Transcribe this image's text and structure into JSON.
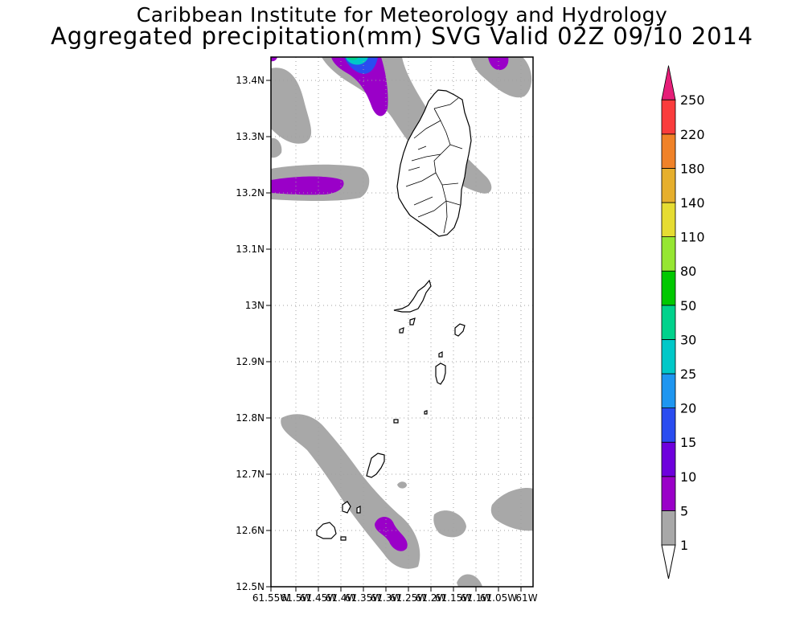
{
  "header": {
    "institute": "Caribbean Institute for Meteorology and Hydrology",
    "product": "Aggregated precipitation(mm) SVG Valid 02Z 09/10 2014"
  },
  "map": {
    "lat_labels": [
      "13.4N",
      "13.3N",
      "13.2N",
      "13.1N",
      "13N",
      "12.9N",
      "12.8N",
      "12.7N",
      "12.6N",
      "12.5N"
    ],
    "lon_labels": [
      "61.55W",
      "61.5W",
      "61.45W",
      "61.4W",
      "61.35W",
      "61.3W",
      "61.25W",
      "61.2W",
      "61.15W",
      "61.1W",
      "61.05W",
      "61W"
    ]
  },
  "colorbar": {
    "levels": [
      "1",
      "5",
      "10",
      "15",
      "20",
      "25",
      "30",
      "50",
      "80",
      "110",
      "140",
      "180",
      "220",
      "250"
    ],
    "colors": [
      "#a8a8a8",
      "#9a00c8",
      "#6e00dc",
      "#2a4cf0",
      "#1e96f0",
      "#00c8c8",
      "#00d28c",
      "#00c800",
      "#96e632",
      "#e6dc32",
      "#e6af2d",
      "#f08228",
      "#fa3c3c",
      "#e61e78"
    ]
  }
}
